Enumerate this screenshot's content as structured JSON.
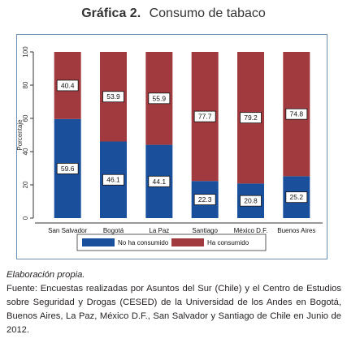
{
  "title": {
    "number": "Gráfica 2.",
    "text": "Consumo de tabaco"
  },
  "chart_data": {
    "type": "bar",
    "stacked": true,
    "categories": [
      "San Salvador",
      "Bogotá",
      "La Paz",
      "Santiago",
      "México D.F.",
      "Buenos Aires"
    ],
    "series": [
      {
        "name": "No ha consumido",
        "values": [
          59.6,
          46.1,
          44.1,
          22.3,
          20.8,
          25.2
        ],
        "labels": [
          "59.6",
          "46.1",
          "44.1",
          "22.3",
          "20.8",
          "25.2"
        ],
        "color": "#1a4f9c"
      },
      {
        "name": "Ha consumido",
        "values": [
          40.4,
          53.9,
          55.9,
          77.7,
          79.2,
          74.8
        ],
        "labels": [
          "40.4",
          "53.9",
          "55.9",
          "77.7",
          "79.2",
          "74.8"
        ],
        "color": "#a13a3f"
      }
    ],
    "ylabel": "Porcentaje",
    "ylim": [
      0,
      100
    ],
    "yticks": [
      0,
      20,
      40,
      60,
      80,
      100
    ],
    "ytick_labels": [
      "0",
      "20",
      "40",
      "60",
      "80",
      "100"
    ],
    "legend_position": "bottom",
    "grid": false
  },
  "notes": {
    "elaboracion": "Elaboración propia.",
    "fuente": "Fuente: Encuestas realizadas por Asuntos del Sur (Chile) y el Centro de Estudios sobre Seguridad y Drogas (CESED) de la Universidad de los Andes en Bogotá, Buenos Aires, La Paz,  México D.F., San Salvador y Santiago de Chile en Junio de 2012."
  }
}
